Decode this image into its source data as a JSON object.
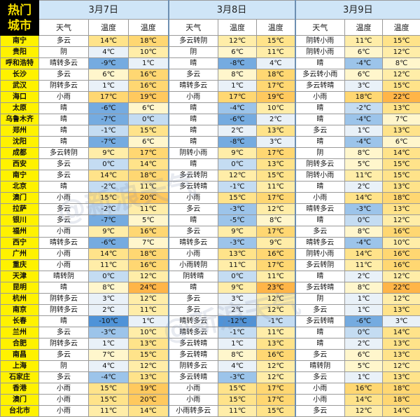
{
  "header": {
    "corner_label": "热门\n城市",
    "days": [
      {
        "date": "3月7日",
        "cols": [
          "天气",
          "温度",
          "温度"
        ]
      },
      {
        "date": "3月8日",
        "cols": [
          "天气",
          "温度",
          "温度"
        ]
      },
      {
        "date": "3月9日",
        "cols": [
          "天气",
          "温度",
          "温度"
        ]
      }
    ]
  },
  "watermark": "@新浪天气",
  "rows": [
    {
      "city": "南宁",
      "d": [
        [
          "多云",
          "14℃",
          "18℃"
        ],
        [
          "多云转阴",
          "12℃",
          "15℃"
        ],
        [
          "阴转小雨",
          "11℃",
          "15℃"
        ]
      ]
    },
    {
      "city": "贵阳",
      "d": [
        [
          "阴",
          "4℃",
          "10℃"
        ],
        [
          "阴",
          "6℃",
          "11℃"
        ],
        [
          "阴转小雨",
          "6℃",
          "12℃"
        ]
      ]
    },
    {
      "city": "呼和浩特",
      "d": [
        [
          "晴转多云",
          "-9℃",
          "1℃"
        ],
        [
          "晴",
          "-8℃",
          "4℃"
        ],
        [
          "晴",
          "-4℃",
          "8℃"
        ]
      ]
    },
    {
      "city": "长沙",
      "d": [
        [
          "多云",
          "6℃",
          "16℃"
        ],
        [
          "多云",
          "8℃",
          "18℃"
        ],
        [
          "多云转小雨",
          "6℃",
          "12℃"
        ]
      ]
    },
    {
      "city": "武汉",
      "d": [
        [
          "阴转多云",
          "1℃",
          "16℃"
        ],
        [
          "晴转多云",
          "1℃",
          "17℃"
        ],
        [
          "多云转晴",
          "3℃",
          "15℃"
        ]
      ]
    },
    {
      "city": "海口",
      "d": [
        [
          "小雨",
          "17℃",
          "19℃"
        ],
        [
          "小雨",
          "17℃",
          "19℃"
        ],
        [
          "小雨",
          "18℃",
          "22℃"
        ]
      ]
    },
    {
      "city": "太原",
      "d": [
        [
          "晴",
          "-6℃",
          "6℃"
        ],
        [
          "晴",
          "-4℃",
          "10℃"
        ],
        [
          "晴",
          "-2℃",
          "13℃"
        ]
      ]
    },
    {
      "city": "乌鲁木齐",
      "d": [
        [
          "晴",
          "-7℃",
          "0℃"
        ],
        [
          "晴",
          "-6℃",
          "2℃"
        ],
        [
          "晴",
          "-4℃",
          "7℃"
        ]
      ]
    },
    {
      "city": "郑州",
      "d": [
        [
          "晴",
          "-1℃",
          "15℃"
        ],
        [
          "晴",
          "2℃",
          "13℃"
        ],
        [
          "多云",
          "1℃",
          "13℃"
        ]
      ]
    },
    {
      "city": "沈阳",
      "d": [
        [
          "晴",
          "-7℃",
          "6℃"
        ],
        [
          "晴",
          "-8℃",
          "3℃"
        ],
        [
          "晴",
          "-4℃",
          "6℃"
        ]
      ]
    },
    {
      "city": "成都",
      "d": [
        [
          "多云转阴",
          "9℃",
          "17℃"
        ],
        [
          "阴转小雨",
          "9℃",
          "17℃"
        ],
        [
          "阴",
          "8℃",
          "14℃"
        ]
      ]
    },
    {
      "city": "西安",
      "d": [
        [
          "多云",
          "0℃",
          "14℃"
        ],
        [
          "晴",
          "0℃",
          "13℃"
        ],
        [
          "阴转多云",
          "5℃",
          "15℃"
        ]
      ]
    },
    {
      "city": "南宁",
      "d": [
        [
          "多云",
          "14℃",
          "18℃"
        ],
        [
          "多云转阴",
          "12℃",
          "15℃"
        ],
        [
          "阴转小雨",
          "11℃",
          "15℃"
        ]
      ]
    },
    {
      "city": "北京",
      "d": [
        [
          "晴",
          "-2℃",
          "11℃"
        ],
        [
          "多云转晴",
          "-1℃",
          "11℃"
        ],
        [
          "晴",
          "2℃",
          "13℃"
        ]
      ]
    },
    {
      "city": "澳门",
      "d": [
        [
          "小雨",
          "15℃",
          "20℃"
        ],
        [
          "小雨",
          "15℃",
          "17℃"
        ],
        [
          "小雨",
          "14℃",
          "18℃"
        ]
      ]
    },
    {
      "city": "拉萨",
      "d": [
        [
          "多云",
          "-2℃",
          "11℃"
        ],
        [
          "多云",
          "-3℃",
          "12℃"
        ],
        [
          "晴转多云",
          "-3℃",
          "13℃"
        ]
      ]
    },
    {
      "city": "银川",
      "d": [
        [
          "多云",
          "-7℃",
          "5℃"
        ],
        [
          "晴",
          "-5℃",
          "8℃"
        ],
        [
          "晴",
          "0℃",
          "12℃"
        ]
      ]
    },
    {
      "city": "福州",
      "d": [
        [
          "小雨",
          "9℃",
          "16℃"
        ],
        [
          "多云",
          "9℃",
          "17℃"
        ],
        [
          "多云",
          "8℃",
          "16℃"
        ]
      ]
    },
    {
      "city": "西宁",
      "d": [
        [
          "晴转多云",
          "-6℃",
          "7℃"
        ],
        [
          "晴转多云",
          "-3℃",
          "9℃"
        ],
        [
          "晴转多云",
          "-4℃",
          "10℃"
        ]
      ]
    },
    {
      "city": "广州",
      "d": [
        [
          "小雨",
          "14℃",
          "18℃"
        ],
        [
          "小雨",
          "13℃",
          "16℃"
        ],
        [
          "阴转小雨",
          "14℃",
          "16℃"
        ]
      ]
    },
    {
      "city": "重庆",
      "d": [
        [
          "小雨",
          "11℃",
          "16℃"
        ],
        [
          "小雨转阴",
          "11℃",
          "17℃"
        ],
        [
          "多云转阴",
          "11℃",
          "16℃"
        ]
      ]
    },
    {
      "city": "天津",
      "d": [
        [
          "晴转阴",
          "0℃",
          "12℃"
        ],
        [
          "阴转晴",
          "0℃",
          "11℃"
        ],
        [
          "晴",
          "2℃",
          "12℃"
        ]
      ]
    },
    {
      "city": "昆明",
      "d": [
        [
          "晴",
          "8℃",
          "24℃"
        ],
        [
          "晴",
          "9℃",
          "23℃"
        ],
        [
          "多云转晴",
          "8℃",
          "22℃"
        ]
      ]
    },
    {
      "city": "杭州",
      "d": [
        [
          "阴转多云",
          "3℃",
          "12℃"
        ],
        [
          "多云",
          "3℃",
          "12℃"
        ],
        [
          "阴",
          "1℃",
          "12℃"
        ]
      ]
    },
    {
      "city": "南京",
      "d": [
        [
          "阴转多云",
          "2℃",
          "11℃"
        ],
        [
          "多云",
          "2℃",
          "12℃"
        ],
        [
          "多云",
          "1℃",
          "13℃"
        ]
      ]
    },
    {
      "city": "长春",
      "d": [
        [
          "晴",
          "-10℃",
          "1℃"
        ],
        [
          "晴转多云",
          "-12℃",
          "-1℃"
        ],
        [
          "多云转晴",
          "-6℃",
          "3℃"
        ]
      ]
    },
    {
      "city": "兰州",
      "d": [
        [
          "多云",
          "-3℃",
          "10℃"
        ],
        [
          "晴转多云",
          "-1℃",
          "11℃"
        ],
        [
          "晴",
          "0℃",
          "14℃"
        ]
      ]
    },
    {
      "city": "合肥",
      "d": [
        [
          "阴转多云",
          "1℃",
          "13℃"
        ],
        [
          "多云转晴",
          "1℃",
          "13℃"
        ],
        [
          "晴",
          "2℃",
          "13℃"
        ]
      ]
    },
    {
      "city": "南昌",
      "d": [
        [
          "多云",
          "7℃",
          "15℃"
        ],
        [
          "多云转晴",
          "8℃",
          "16℃"
        ],
        [
          "多云",
          "6℃",
          "13℃"
        ]
      ]
    },
    {
      "city": "上海",
      "d": [
        [
          "阴",
          "4℃",
          "12℃"
        ],
        [
          "阴转多云",
          "4℃",
          "12℃"
        ],
        [
          "晴转阴",
          "5℃",
          "12℃"
        ]
      ]
    },
    {
      "city": "石家庄",
      "d": [
        [
          "多云",
          "-4℃",
          "13℃"
        ],
        [
          "多云转晴",
          "-3℃",
          "12℃"
        ],
        [
          "多云",
          "1℃",
          "13℃"
        ]
      ]
    },
    {
      "city": "香港",
      "d": [
        [
          "小雨",
          "15℃",
          "19℃"
        ],
        [
          "小雨",
          "15℃",
          "17℃"
        ],
        [
          "小雨",
          "16℃",
          "18℃"
        ]
      ]
    },
    {
      "city": "澳门",
      "d": [
        [
          "小雨",
          "15℃",
          "20℃"
        ],
        [
          "小雨",
          "15℃",
          "17℃"
        ],
        [
          "小雨",
          "14℃",
          "18℃"
        ]
      ]
    },
    {
      "city": "台北市",
      "d": [
        [
          "小雨",
          "11℃",
          "14℃"
        ],
        [
          "小雨转多云",
          "11℃",
          "15℃"
        ],
        [
          "多云",
          "12℃",
          "14℃"
        ]
      ]
    }
  ]
}
